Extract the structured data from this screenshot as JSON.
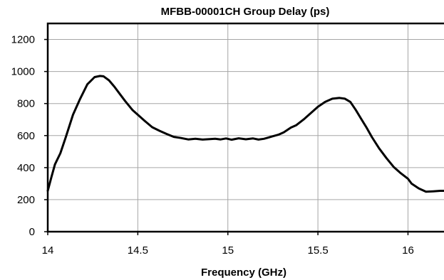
{
  "chart_data": {
    "type": "line",
    "title": "MFBB-00001CH Group Delay (ps)",
    "xlabel": "Frequency  (GHz)",
    "ylabel": "",
    "xlim": [
      14,
      16.2
    ],
    "ylim": [
      0,
      1300
    ],
    "xticks": [
      14,
      14.5,
      15,
      15.5,
      16
    ],
    "xtick_labels": [
      "14",
      "14.5",
      "15",
      "15.5",
      "16"
    ],
    "yticks": [
      0,
      200,
      400,
      600,
      800,
      1000,
      1200
    ],
    "ytick_labels": [
      "0",
      "200",
      "400",
      "600",
      "800",
      "1000",
      "1200"
    ],
    "grid": true,
    "legend": "none",
    "series": [
      {
        "color": "#000000",
        "x": [
          14.0,
          14.02,
          14.04,
          14.07,
          14.1,
          14.14,
          14.18,
          14.22,
          14.26,
          14.29,
          14.31,
          14.34,
          14.37,
          14.4,
          14.43,
          14.47,
          14.5,
          14.54,
          14.58,
          14.62,
          14.66,
          14.7,
          14.74,
          14.78,
          14.82,
          14.86,
          14.9,
          14.93,
          14.96,
          14.99,
          15.02,
          15.06,
          15.1,
          15.14,
          15.17,
          15.2,
          15.22,
          15.25,
          15.28,
          15.31,
          15.35,
          15.38,
          15.42,
          15.46,
          15.5,
          15.54,
          15.58,
          15.62,
          15.65,
          15.68,
          15.71,
          15.74,
          15.77,
          15.8,
          15.84,
          15.88,
          15.92,
          15.96,
          16.0,
          16.02,
          16.06,
          16.1,
          16.14,
          16.18,
          16.2
        ],
        "y": [
          255,
          340,
          420,
          490,
          590,
          730,
          830,
          920,
          965,
          972,
          970,
          945,
          905,
          860,
          815,
          760,
          730,
          690,
          652,
          630,
          610,
          592,
          585,
          576,
          580,
          575,
          578,
          580,
          576,
          582,
          574,
          583,
          577,
          582,
          575,
          580,
          586,
          596,
          605,
          620,
          650,
          665,
          700,
          740,
          780,
          810,
          830,
          835,
          830,
          810,
          760,
          705,
          650,
          590,
          520,
          460,
          405,
          365,
          330,
          300,
          270,
          250,
          252,
          255,
          255
        ]
      }
    ]
  }
}
